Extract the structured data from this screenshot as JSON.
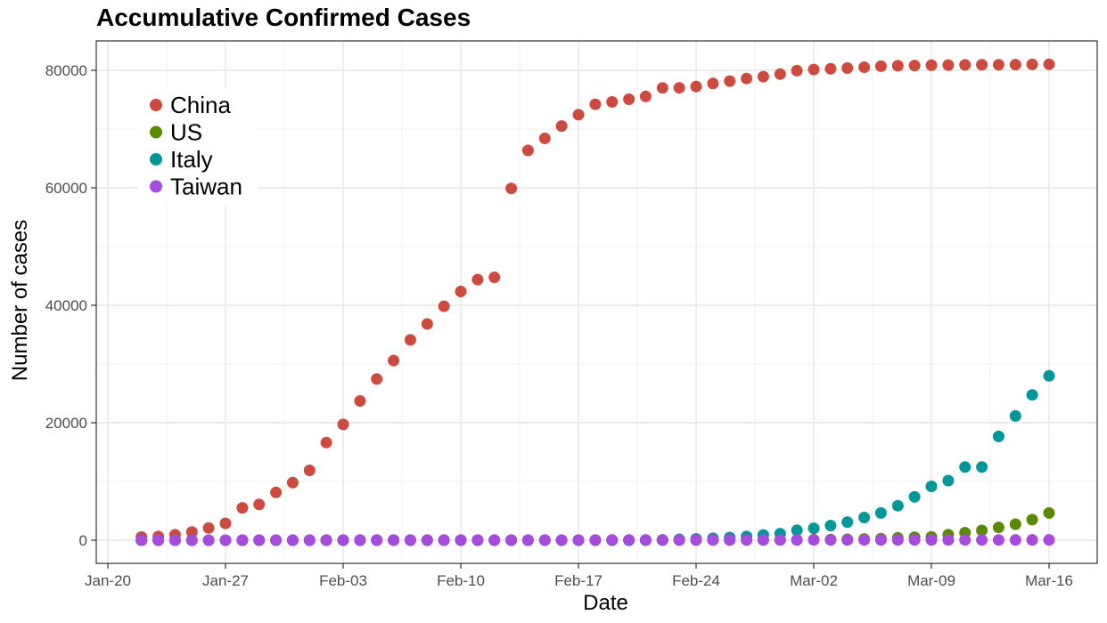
{
  "chart_data": {
    "type": "scatter",
    "title": "Accumulative Confirmed Cases",
    "xlabel": "Date",
    "ylabel": "Number of cases",
    "x_tick_labels": [
      "Jan-20",
      "Jan-27",
      "Feb-03",
      "Feb-10",
      "Feb-17",
      "Feb-24",
      "Mar-02",
      "Mar-09",
      "Mar-16"
    ],
    "y_ticks": [
      0,
      20000,
      40000,
      60000,
      80000
    ],
    "ylim": [
      -4000,
      85000
    ],
    "xlim": [
      "2020-01-20",
      "2020-03-17"
    ],
    "grid": true,
    "legend_position": "top-left",
    "x": [
      "2020-01-22",
      "2020-01-23",
      "2020-01-24",
      "2020-01-25",
      "2020-01-26",
      "2020-01-27",
      "2020-01-28",
      "2020-01-29",
      "2020-01-30",
      "2020-01-31",
      "2020-02-01",
      "2020-02-02",
      "2020-02-03",
      "2020-02-04",
      "2020-02-05",
      "2020-02-06",
      "2020-02-07",
      "2020-02-08",
      "2020-02-09",
      "2020-02-10",
      "2020-02-11",
      "2020-02-12",
      "2020-02-13",
      "2020-02-14",
      "2020-02-15",
      "2020-02-16",
      "2020-02-17",
      "2020-02-18",
      "2020-02-19",
      "2020-02-20",
      "2020-02-21",
      "2020-02-22",
      "2020-02-23",
      "2020-02-24",
      "2020-02-25",
      "2020-02-26",
      "2020-02-27",
      "2020-02-28",
      "2020-02-29",
      "2020-03-01",
      "2020-03-02",
      "2020-03-03",
      "2020-03-04",
      "2020-03-05",
      "2020-03-06",
      "2020-03-07",
      "2020-03-08",
      "2020-03-09",
      "2020-03-10",
      "2020-03-11",
      "2020-03-12",
      "2020-03-13",
      "2020-03-14",
      "2020-03-15",
      "2020-03-16"
    ],
    "series": [
      {
        "name": "China",
        "color": "#CD4A3F",
        "values": [
          548,
          643,
          920,
          1406,
          2075,
          2877,
          5509,
          6087,
          8141,
          9802,
          11891,
          16630,
          19716,
          23707,
          27440,
          30587,
          34110,
          36814,
          39829,
          42354,
          44386,
          44759,
          59895,
          66358,
          68413,
          70513,
          72434,
          74211,
          74619,
          75077,
          75550,
          77001,
          77022,
          77241,
          77754,
          78166,
          78600,
          78928,
          79356,
          79932,
          80136,
          80261,
          80386,
          80537,
          80690,
          80770,
          80823,
          80860,
          80887,
          80921,
          80932,
          80945,
          80977,
          81003,
          81033
        ]
      },
      {
        "name": "US",
        "color": "#5A8A00",
        "values": [
          1,
          1,
          2,
          2,
          5,
          5,
          5,
          5,
          5,
          7,
          8,
          8,
          11,
          11,
          11,
          11,
          11,
          11,
          11,
          11,
          12,
          12,
          13,
          13,
          13,
          13,
          13,
          13,
          13,
          13,
          15,
          15,
          15,
          51,
          51,
          57,
          58,
          60,
          68,
          74,
          98,
          118,
          149,
          217,
          262,
          402,
          518,
          583,
          959,
          1281,
          1663,
          2179,
          2726,
          3499,
          4632
        ]
      },
      {
        "name": "Italy",
        "color": "#00979A",
        "values": [
          0,
          0,
          0,
          0,
          0,
          0,
          0,
          0,
          0,
          2,
          2,
          2,
          2,
          2,
          2,
          2,
          3,
          3,
          3,
          3,
          3,
          3,
          3,
          3,
          3,
          3,
          3,
          3,
          3,
          3,
          20,
          62,
          155,
          229,
          322,
          453,
          655,
          888,
          1128,
          1694,
          2036,
          2502,
          3089,
          3858,
          4636,
          5883,
          7375,
          9172,
          10149,
          12462,
          12462,
          17660,
          21157,
          24747,
          27980
        ]
      },
      {
        "name": "Taiwan",
        "color": "#A64BDC",
        "values": [
          1,
          1,
          3,
          3,
          4,
          5,
          8,
          8,
          9,
          10,
          10,
          10,
          10,
          11,
          11,
          16,
          16,
          17,
          18,
          18,
          18,
          18,
          18,
          18,
          18,
          20,
          22,
          22,
          23,
          24,
          26,
          26,
          28,
          30,
          31,
          32,
          32,
          34,
          39,
          40,
          41,
          42,
          42,
          44,
          45,
          45,
          45,
          45,
          47,
          48,
          49,
          50,
          53,
          59,
          67
        ]
      }
    ]
  }
}
